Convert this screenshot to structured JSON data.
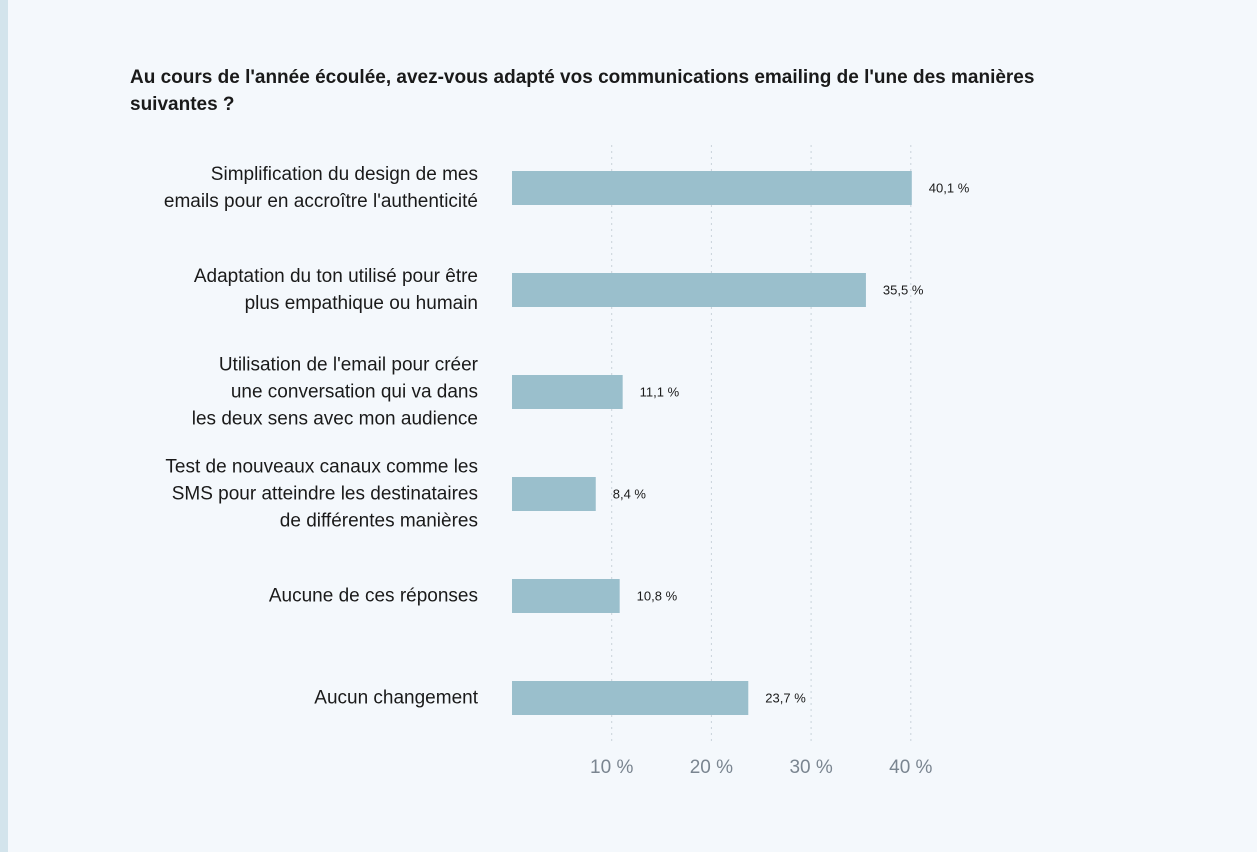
{
  "chart_data": {
    "type": "hbar",
    "title": "Au cours de l'année écoulée, avez-vous adapté vos communications emailing de l'une des manières suivantes ?",
    "categories": [
      "Simplification du design de mes\nemails pour en accroître l'authenticité",
      "Adaptation du ton utilisé pour être\nplus empathique ou humain",
      "Utilisation de l'email pour créer\nune conversation qui va dans\nles deux sens avec mon audience",
      "Test de nouveaux canaux comme les\nSMS pour atteindre les destinataires\nde différentes manières",
      "Aucune de ces réponses",
      "Aucun changement"
    ],
    "values": [
      40.1,
      35.5,
      11.1,
      8.4,
      10.8,
      23.7
    ],
    "value_labels": [
      "40,1 %",
      "35,5 %",
      "11,1 %",
      "8,4 %",
      "10,8 %",
      "23,7 %"
    ],
    "color": "#9abfcc",
    "xlim": [
      0,
      45
    ],
    "xticks": [
      {
        "value": 10,
        "label": "10 %"
      },
      {
        "value": 20,
        "label": "20 %"
      },
      {
        "value": 30,
        "label": "30 %"
      },
      {
        "value": 40,
        "label": "40 %"
      }
    ],
    "grid": true
  }
}
